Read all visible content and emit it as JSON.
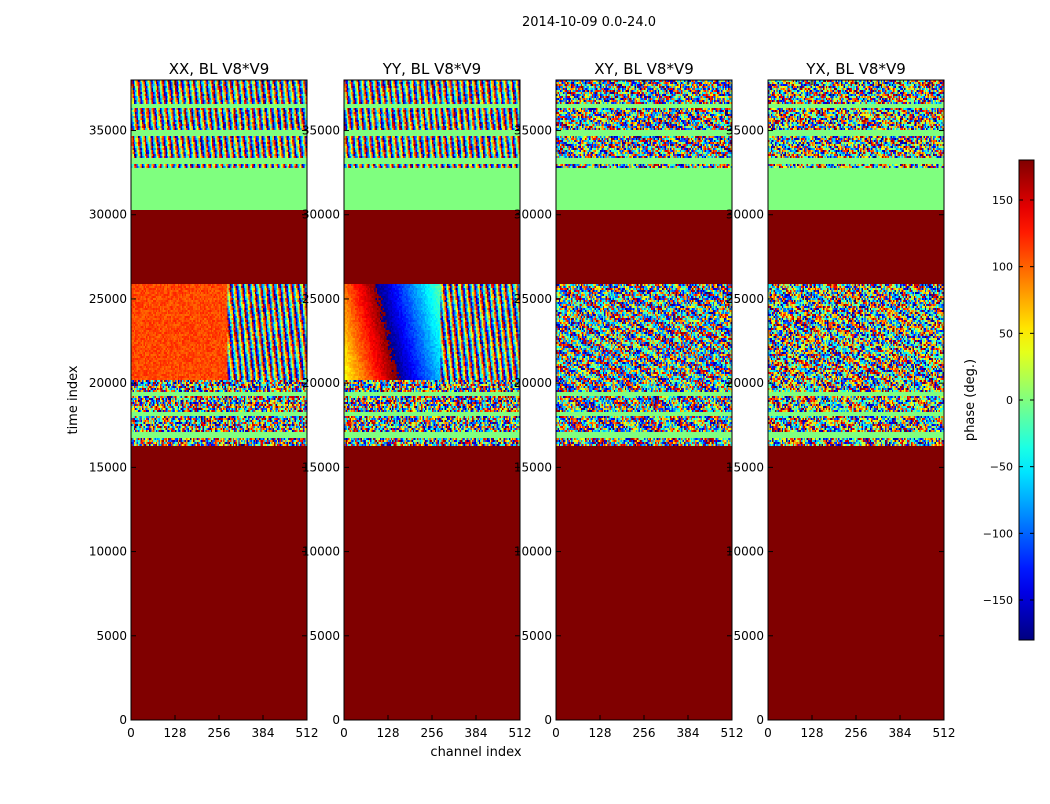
{
  "suptitle": "2014-10-09 0.0-24.0",
  "colors": {
    "saturated": "#800000",
    "zero_phase": "#7fff7f",
    "frame": "#000000"
  },
  "chart_data": {
    "type": "heatmap",
    "colormap": "jet",
    "xlabel": "channel index",
    "ylabel": "time index",
    "xlim": [
      0,
      512
    ],
    "ylim": [
      0,
      38000
    ],
    "xticks": [
      0,
      128,
      256,
      384,
      512
    ],
    "yticks": [
      0,
      5000,
      10000,
      15000,
      20000,
      25000,
      30000,
      35000
    ],
    "colorbar": {
      "label": "phase (deg.)",
      "range": [
        -180,
        180
      ],
      "ticks": [
        -150,
        -100,
        -50,
        0,
        50,
        100,
        150
      ],
      "tick_labels": [
        "−150",
        "−100",
        "−50",
        "0",
        "50",
        "100",
        "150"
      ]
    },
    "panels": [
      {
        "title": "XX, BL V8*V9",
        "signal": "fringe-smooth",
        "phase_offset_deg": 70
      },
      {
        "title": "YY, BL V8*V9",
        "signal": "fringe-rainbow",
        "phase_offset_deg": 40
      },
      {
        "title": "XY, BL V8*V9",
        "signal": "noisy-fringe",
        "phase_offset_deg": -90
      },
      {
        "title": "YX, BL V8*V9",
        "signal": "noisy-fringe",
        "phase_offset_deg": 20
      }
    ],
    "blocks": [
      {
        "from": 0,
        "to": 16300,
        "content": "saturated"
      },
      {
        "from": 16300,
        "to": 20200,
        "content": "noise with flagged rows"
      },
      {
        "from": 20200,
        "to": 25900,
        "content": "fringes"
      },
      {
        "from": 25900,
        "to": 30300,
        "content": "saturated"
      },
      {
        "from": 30300,
        "to": 32800,
        "content": "zero phase"
      },
      {
        "from": 32800,
        "to": 38000,
        "content": "fringes with flagged rows"
      }
    ]
  }
}
